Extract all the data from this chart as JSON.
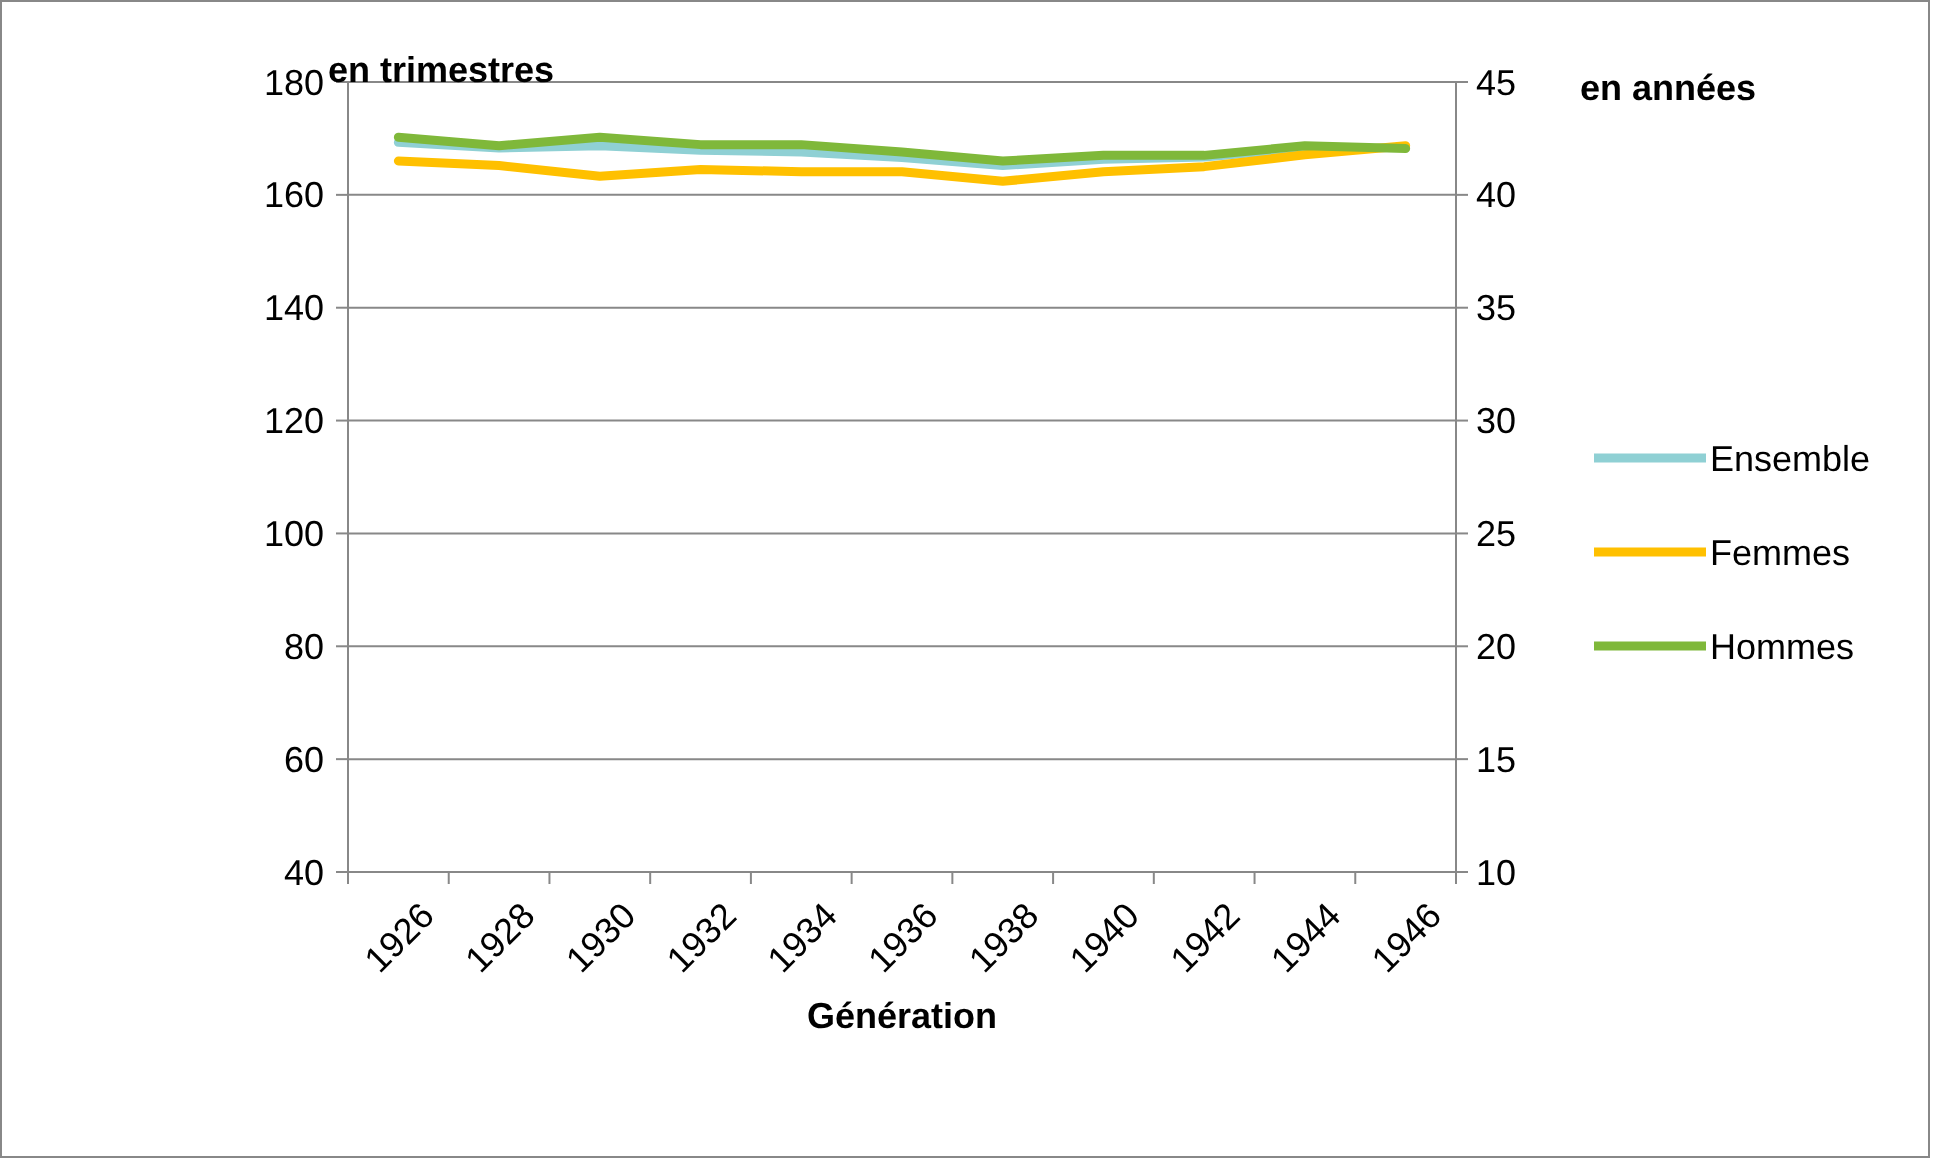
{
  "chart_data": {
    "type": "line",
    "xlabel": "Génération",
    "ylabel": "en trimestres",
    "y2label": "en années",
    "categories": [
      "1926",
      "1928",
      "1930",
      "1932",
      "1934",
      "1936",
      "1938",
      "1940",
      "1942",
      "1944",
      "1946"
    ],
    "series": [
      {
        "name": "Ensemble",
        "color": "#8fd0d4",
        "values": [
          169.3,
          168.3,
          168.7,
          167.9,
          167.6,
          166.6,
          165.2,
          166.3,
          166.7,
          168.3,
          null
        ]
      },
      {
        "name": "Femmes",
        "color": "#ffc000",
        "values": [
          166.0,
          165.2,
          163.3,
          164.5,
          164.1,
          164.1,
          162.4,
          164.1,
          165.0,
          167.1,
          168.7
        ]
      },
      {
        "name": "Hommes",
        "color": "#7fb83a",
        "values": [
          170.2,
          168.7,
          170.2,
          168.9,
          168.9,
          167.6,
          166.0,
          167.0,
          167.0,
          168.7,
          168.2
        ]
      }
    ],
    "ylim": [
      40,
      180
    ],
    "yticks": [
      40,
      60,
      80,
      100,
      120,
      140,
      160,
      180
    ],
    "y2lim": [
      10,
      45
    ],
    "y2ticks": [
      10,
      15,
      20,
      25,
      30,
      35,
      40,
      45
    ],
    "grid": "y",
    "legend": "right",
    "marker": "none",
    "line_style": "solid"
  }
}
